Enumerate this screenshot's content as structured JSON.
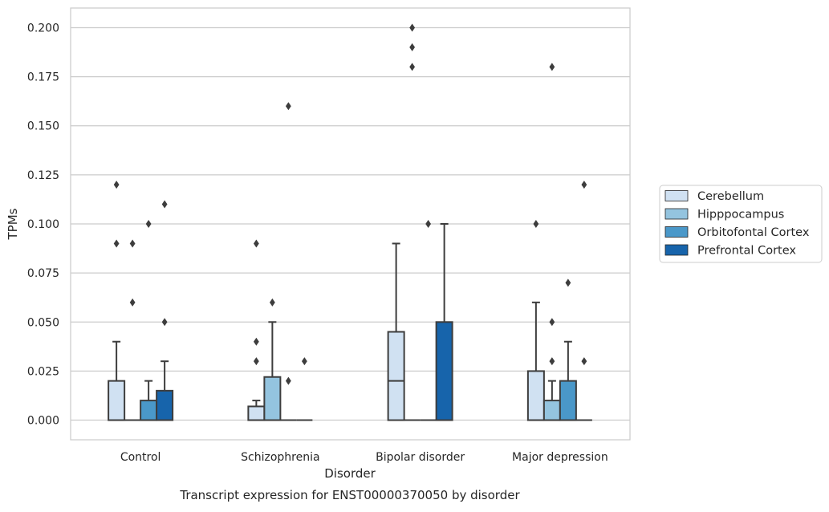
{
  "chart_data": {
    "type": "box",
    "title": "",
    "caption": "Transcript expression for ENST00000370050 by disorder",
    "xlabel": "Disorder",
    "ylabel": "TPMs",
    "ylim": [
      -0.01,
      0.21
    ],
    "yticks": [
      0.0,
      0.025,
      0.05,
      0.075,
      0.1,
      0.125,
      0.15,
      0.175,
      0.2
    ],
    "ytick_labels": [
      "0.000",
      "0.025",
      "0.050",
      "0.075",
      "0.100",
      "0.125",
      "0.150",
      "0.175",
      "0.200"
    ],
    "categories": [
      "Control",
      "Schizophrenia",
      "Bipolar disorder",
      "Major depression"
    ],
    "grid": "horizontal",
    "legend_position": "right",
    "series": [
      {
        "name": "Cerebellum",
        "color": "#d0e1f2",
        "boxes": [
          {
            "category": "Control",
            "q1": 0.0,
            "median": 0.0,
            "q3": 0.02,
            "whisker_low": 0.0,
            "whisker_high": 0.04,
            "outliers": [
              0.12,
              0.09
            ]
          },
          {
            "category": "Schizophrenia",
            "q1": 0.0,
            "median": 0.0,
            "q3": 0.007,
            "whisker_low": 0.0,
            "whisker_high": 0.01,
            "outliers": [
              0.09,
              0.04,
              0.03
            ]
          },
          {
            "category": "Bipolar disorder",
            "q1": 0.0,
            "median": 0.02,
            "q3": 0.045,
            "whisker_low": 0.0,
            "whisker_high": 0.09,
            "outliers": []
          },
          {
            "category": "Major depression",
            "q1": 0.0,
            "median": 0.0,
            "q3": 0.025,
            "whisker_low": 0.0,
            "whisker_high": 0.06,
            "outliers": [
              0.1
            ]
          }
        ]
      },
      {
        "name": "Hipppocampus",
        "color": "#94c4df",
        "boxes": [
          {
            "category": "Control",
            "q1": 0.0,
            "median": 0.0,
            "q3": 0.0,
            "whisker_low": 0.0,
            "whisker_high": 0.0,
            "outliers": [
              0.09,
              0.06
            ]
          },
          {
            "category": "Schizophrenia",
            "q1": 0.0,
            "median": 0.0,
            "q3": 0.022,
            "whisker_low": 0.0,
            "whisker_high": 0.05,
            "outliers": [
              0.06
            ]
          },
          {
            "category": "Bipolar disorder",
            "q1": 0.0,
            "median": 0.0,
            "q3": 0.0,
            "whisker_low": 0.0,
            "whisker_high": 0.0,
            "outliers": [
              0.2,
              0.19,
              0.18
            ]
          },
          {
            "category": "Major depression",
            "q1": 0.0,
            "median": 0.0,
            "q3": 0.01,
            "whisker_low": 0.0,
            "whisker_high": 0.02,
            "outliers": [
              0.18,
              0.05,
              0.03
            ]
          }
        ]
      },
      {
        "name": "Orbitofontal Cortex",
        "color": "#4a98c9",
        "boxes": [
          {
            "category": "Control",
            "q1": 0.0,
            "median": 0.0,
            "q3": 0.01,
            "whisker_low": 0.0,
            "whisker_high": 0.02,
            "outliers": [
              0.1
            ]
          },
          {
            "category": "Schizophrenia",
            "q1": 0.0,
            "median": 0.0,
            "q3": 0.0,
            "whisker_low": 0.0,
            "whisker_high": 0.0,
            "outliers": [
              0.16,
              0.02
            ]
          },
          {
            "category": "Bipolar disorder",
            "q1": 0.0,
            "median": 0.0,
            "q3": 0.0,
            "whisker_low": 0.0,
            "whisker_high": 0.0,
            "outliers": [
              0.1
            ]
          },
          {
            "category": "Major depression",
            "q1": 0.0,
            "median": 0.0,
            "q3": 0.02,
            "whisker_low": 0.0,
            "whisker_high": 0.04,
            "outliers": [
              0.07
            ]
          }
        ]
      },
      {
        "name": "Prefrontal Cortex",
        "color": "#1764ab",
        "boxes": [
          {
            "category": "Control",
            "q1": 0.0,
            "median": 0.0,
            "q3": 0.015,
            "whisker_low": 0.0,
            "whisker_high": 0.03,
            "outliers": [
              0.11,
              0.05
            ]
          },
          {
            "category": "Schizophrenia",
            "q1": 0.0,
            "median": 0.0,
            "q3": 0.0,
            "whisker_low": 0.0,
            "whisker_high": 0.0,
            "outliers": [
              0.03
            ]
          },
          {
            "category": "Bipolar disorder",
            "q1": 0.0,
            "median": 0.0,
            "q3": 0.05,
            "whisker_low": 0.0,
            "whisker_high": 0.1,
            "outliers": []
          },
          {
            "category": "Major depression",
            "q1": 0.0,
            "median": 0.0,
            "q3": 0.0,
            "whisker_low": 0.0,
            "whisker_high": 0.0,
            "outliers": [
              0.12,
              0.03
            ]
          }
        ]
      }
    ]
  }
}
